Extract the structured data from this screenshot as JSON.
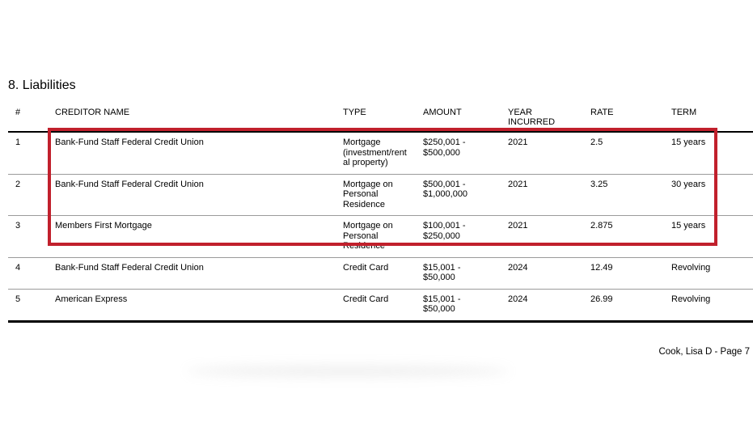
{
  "page": {
    "section_title": "8. Liabilities",
    "footer_text": "Cook, Lisa D - Page 7"
  },
  "highlight": {
    "color": "#c1202c",
    "note_rows_covered": "1-3"
  },
  "table": {
    "columns": [
      {
        "key": "num",
        "label": "#"
      },
      {
        "key": "creditor",
        "label": "CREDITOR NAME"
      },
      {
        "key": "type",
        "label": "TYPE"
      },
      {
        "key": "amount",
        "label": "AMOUNT"
      },
      {
        "key": "year",
        "label": "YEAR\nINCURRED"
      },
      {
        "key": "rate",
        "label": "RATE"
      },
      {
        "key": "term",
        "label": "TERM"
      }
    ],
    "rows": [
      {
        "highlighted": true,
        "cells": [
          "1",
          "Bank-Fund Staff Federal Credit Union",
          "Mortgage\n(investment/rent\nal property)",
          "$250,001 -\n$500,000",
          "2021",
          "2.5",
          "15 years"
        ]
      },
      {
        "highlighted": true,
        "cells": [
          "2",
          "Bank-Fund Staff Federal Credit Union",
          "Mortgage on\nPersonal\nResidence",
          "$500,001 -\n$1,000,000",
          "2021",
          "3.25",
          "30 years"
        ]
      },
      {
        "highlighted": true,
        "cells": [
          "3",
          "Members First Mortgage",
          "Mortgage on\nPersonal\nResidence",
          "$100,001 -\n$250,000",
          "2021",
          "2.875",
          "15 years"
        ]
      },
      {
        "highlighted": false,
        "cells": [
          "4",
          "Bank-Fund Staff Federal Credit Union",
          "Credit Card",
          "$15,001 -\n$50,000",
          "2024",
          "12.49",
          "Revolving"
        ]
      },
      {
        "highlighted": false,
        "cells": [
          "5",
          "American Express",
          "Credit Card",
          "$15,001 -\n$50,000",
          "2024",
          "26.99",
          "Revolving"
        ]
      }
    ]
  }
}
